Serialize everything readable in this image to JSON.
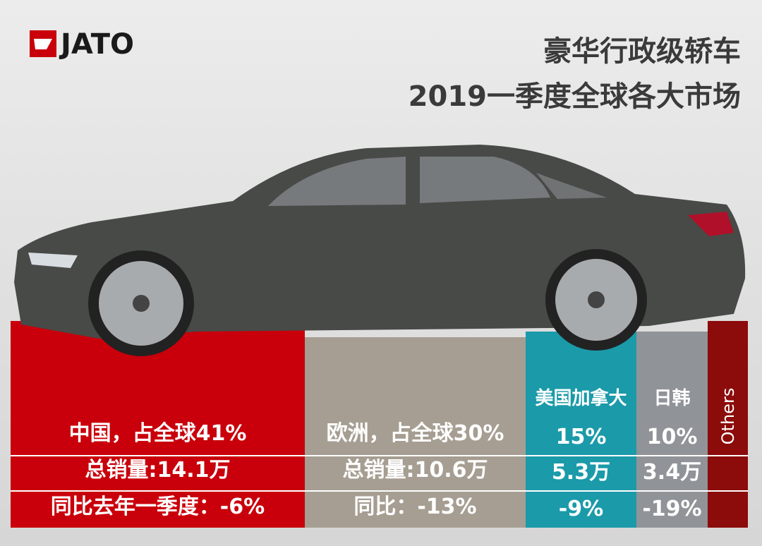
{
  "header": {
    "logo": "JATO",
    "title": [
      "豪华行政级轿车",
      "2019一季度全球各大市场"
    ]
  },
  "markets": [
    {
      "share": "中国，占全球41%",
      "sales": "总销量:14.1万",
      "yoy": "同比去年一季度：-6%"
    },
    {
      "share": "欧洲，占全球30%",
      "sales": "总销量:10.6万",
      "yoy": "同比：-13%"
    },
    {
      "name": "美国加拿大",
      "share": "15%",
      "sales": "5.3万",
      "yoy": "-9%"
    },
    {
      "name": "日韩",
      "share": "10%",
      "sales": "3.4万",
      "yoy": "-19%"
    },
    {
      "name": "Others"
    }
  ]
}
